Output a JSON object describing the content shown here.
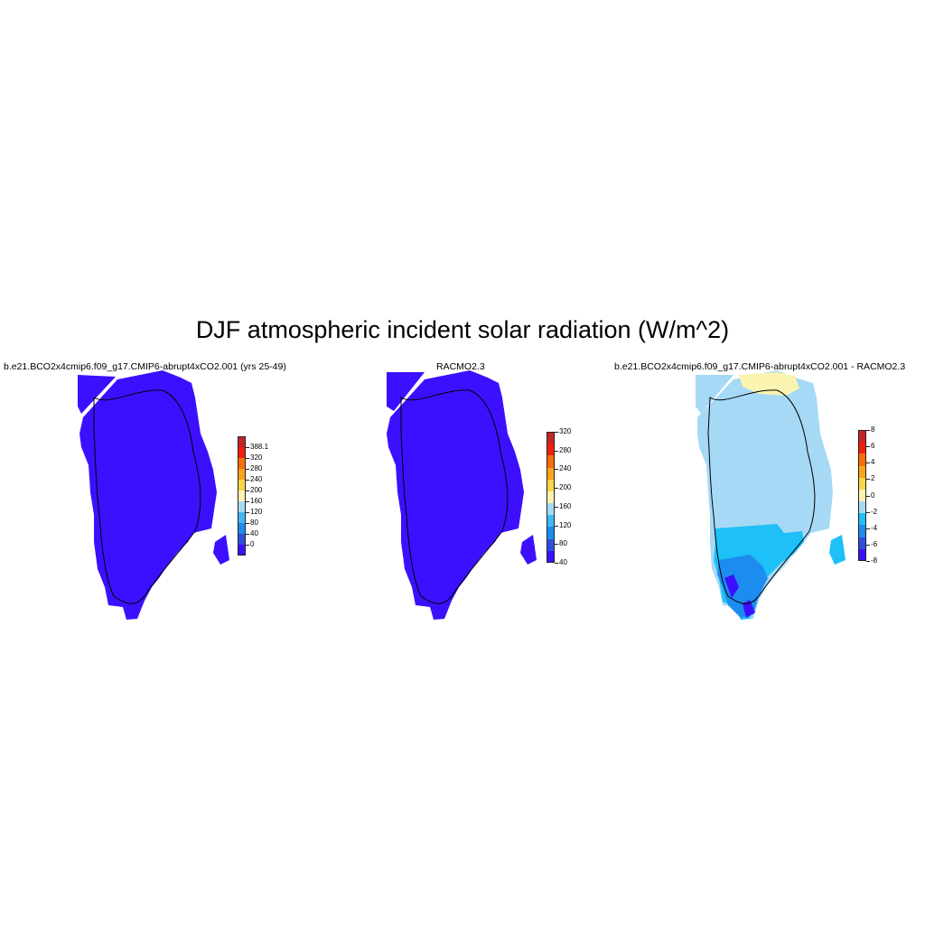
{
  "title": "DJF atmospheric incident solar radiation (W/m^2)",
  "panels": [
    {
      "title": "b.e21.BCO2x4cmip6.f09_g17.CMIP6-abrupt4xCO2.001 (yrs 25-49)",
      "fill": "#3c10ff",
      "colorbar": {
        "colors": [
          "#3c10ff",
          "#2f4ee0",
          "#1c8cf0",
          "#3fb8f6",
          "#a6d9f5",
          "#fbf3b0",
          "#fbd54a",
          "#fba51b",
          "#fb6d08",
          "#f21e0d",
          "#c42527"
        ],
        "labels": [
          "388.1",
          "320",
          "280",
          "240",
          "200",
          "160",
          "120",
          "80",
          "40",
          "0"
        ]
      }
    },
    {
      "title": "RACMO2.3",
      "fill": "#3c10ff",
      "colorbar": {
        "colors": [
          "#3c10ff",
          "#2f4ee0",
          "#1c8cf0",
          "#3fb8f6",
          "#a6d9f5",
          "#fbf3b0",
          "#fbd54a",
          "#fba51b",
          "#fb6d08",
          "#f21e0d",
          "#c42527"
        ],
        "labels": [
          "320",
          "280",
          "240",
          "200",
          "160",
          "120",
          "80",
          "40"
        ]
      }
    },
    {
      "title": "b.e21.BCO2x4cmip6.f09_g17.CMIP6-abrupt4xCO2.001 - RACMO2.3",
      "fill": "#a6d9f5",
      "colorbar": {
        "colors": [
          "#3c10ff",
          "#2f4ee0",
          "#1c8cf0",
          "#1ec0f8",
          "#a6d9f5",
          "#fbf3b0",
          "#fbd54a",
          "#fba51b",
          "#fb6d08",
          "#f21e0d",
          "#c42527"
        ],
        "labels": [
          "8",
          "6",
          "4",
          "2",
          "0",
          "-2",
          "-4",
          "-6",
          "-8"
        ]
      }
    }
  ]
}
